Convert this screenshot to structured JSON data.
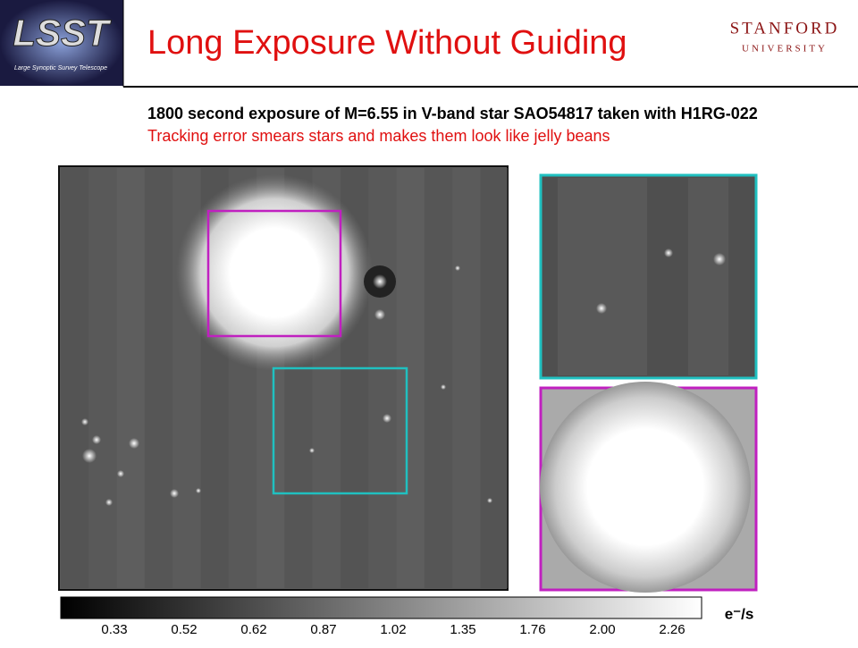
{
  "header": {
    "logo": {
      "text": "LSST",
      "caption": "Large Synoptic Survey Telescope"
    },
    "title": "Long Exposure Without Guiding",
    "university": {
      "name": "STANFORD",
      "sub": "UNIVERSITY"
    }
  },
  "subtitle": {
    "line1": "1800 second exposure of M=6.55 in V-band star SAO54817 taken with H1RG-022",
    "line2": "Tracking error smears stars and makes them look like jelly beans"
  },
  "colorbar": {
    "labels": [
      "0.33",
      "0.52",
      "0.62",
      "0.87",
      "1.02",
      "1.35",
      "1.76",
      "2.00",
      "2.26"
    ],
    "unit": "e⁻/s"
  }
}
